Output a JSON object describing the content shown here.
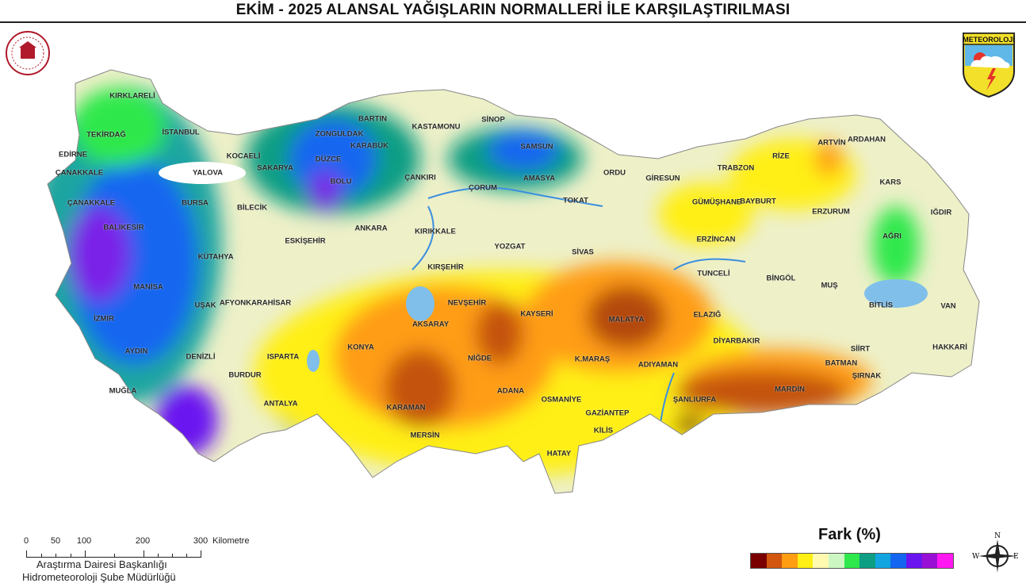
{
  "title": "EKİM - 2025 ALANSAL YAĞIŞLARIN NORMALLERİ İLE KARŞILAŞTIRILMASI",
  "logo_right_text": "METEOROLOJİ",
  "legend": {
    "title": "Fark (%)",
    "colors": [
      "#7a0000",
      "#d2560f",
      "#ff9d13",
      "#ffef14",
      "#fffab0",
      "#cdf7c2",
      "#2ee84c",
      "#0d9e84",
      "#12a5e0",
      "#1466f0",
      "#6a14f0",
      "#9a0fd6",
      "#ff18f0"
    ]
  },
  "scale": {
    "ticks": [
      "0",
      "50",
      "100",
      "200",
      "300"
    ],
    "unit": "Kilometre",
    "dept_line1": "Araştırma Dairesi Başkanlığı",
    "dept_line2": "Hidrometeoroloji Şube Müdürlüğü"
  },
  "compass": {
    "n": "N",
    "e": "E",
    "w": "W"
  },
  "provinces": [
    "KIRKLARELİ",
    "TEKİRDAĞ",
    "EDİRNE",
    "İSTANBUL",
    "ÇANAKKALE",
    "ÇANAKKALE",
    "YALOVA",
    "KOCAELİ",
    "SAKARYA",
    "BURSA",
    "BALIKESİR",
    "BİLECİK",
    "DÜZCE",
    "ZONGULDAK",
    "BARTIN",
    "KARABÜK",
    "BOLU",
    "KASTAMONU",
    "SİNOP",
    "SAMSUN",
    "ÇANKIRI",
    "ÇORUM",
    "AMASYA",
    "TOKAT",
    "ORDU",
    "GİRESUN",
    "TRABZON",
    "RİZE",
    "ARTVİN",
    "ARDAHAN",
    "KARS",
    "IĞDIR",
    "AĞRI",
    "ERZURUM",
    "GÜMÜŞHANE",
    "BAYBURT",
    "ERZİNCAN",
    "SİVAS",
    "YOZGAT",
    "KIRIKKALE",
    "ANKARA",
    "ESKİŞEHİR",
    "KÜTAHYA",
    "MANİSA",
    "İZMİR",
    "UŞAK",
    "AFYONKARAHİSAR",
    "KIRŞEHİR",
    "NEVŞEHİR",
    "AKSARAY",
    "KAYSERİ",
    "MALATYA",
    "TUNCELİ",
    "BİNGÖL",
    "MUŞ",
    "BİTLİS",
    "VAN",
    "ELAZIĞ",
    "DİYARBAKIR",
    "SİİRT",
    "BATMAN",
    "ŞIRNAK",
    "HAKKARİ",
    "MARDİN",
    "ŞANLIURFA",
    "ADIYAMAN",
    "K.MARAŞ",
    "GAZİANTEP",
    "KİLİS",
    "OSMANİYE",
    "HATAY",
    "ADANA",
    "NİĞDE",
    "KONYA",
    "KARAMAN",
    "MERSİN",
    "ISPARTA",
    "BURDUR",
    "ANTALYA",
    "DENİZLİ",
    "AYDIN",
    "MUĞLA"
  ]
}
